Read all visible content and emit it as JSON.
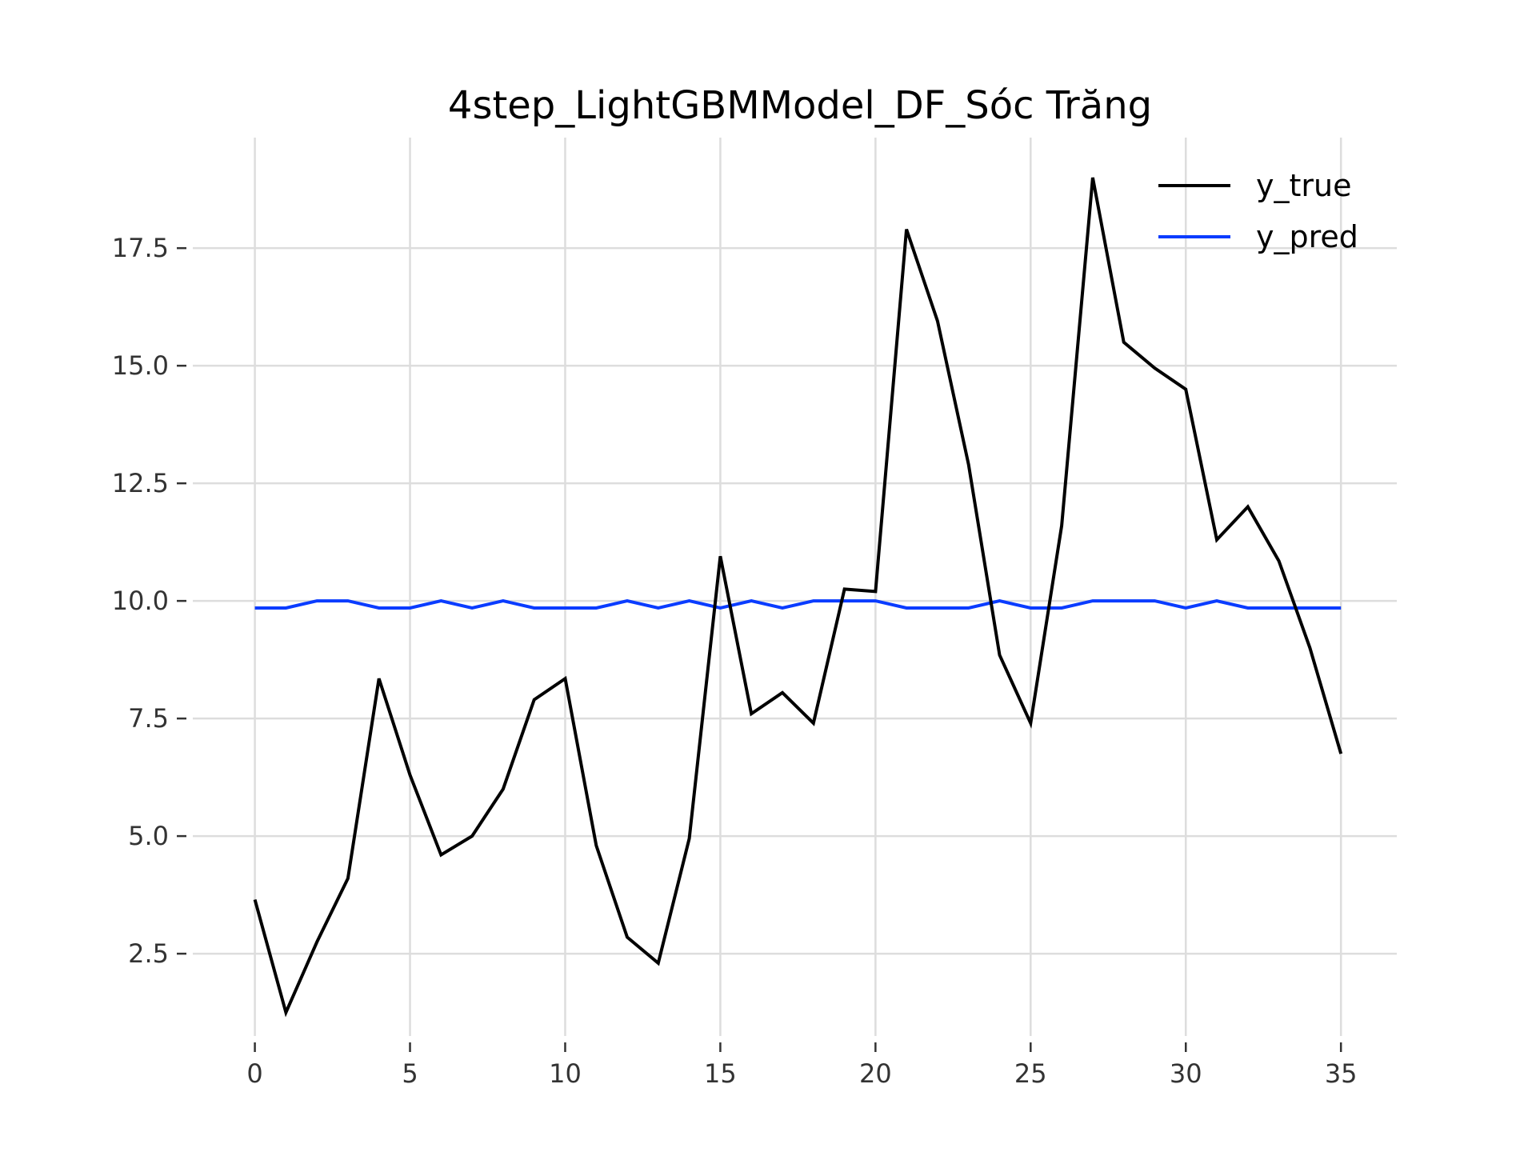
{
  "chart_data": {
    "type": "line",
    "title": "4step_LightGBMModel_DF_Sóc Trăng",
    "xlabel": "",
    "ylabel": "",
    "xlim": [
      -2,
      36.8
    ],
    "ylim": [
      0.75,
      19.85
    ],
    "grid": true,
    "legend_position": "top-right",
    "x_ticks": [
      0,
      5,
      10,
      15,
      20,
      25,
      30,
      35
    ],
    "x_tick_labels": [
      "0",
      "5",
      "10",
      "15",
      "20",
      "25",
      "30",
      "35"
    ],
    "y_ticks": [
      2.5,
      5.0,
      7.5,
      10.0,
      12.5,
      15.0,
      17.5
    ],
    "y_tick_labels": [
      "2.5",
      "5.0",
      "7.5",
      "10.0",
      "12.5",
      "15.0",
      "17.5"
    ],
    "x": [
      0,
      1,
      2,
      3,
      4,
      5,
      6,
      7,
      8,
      9,
      10,
      11,
      12,
      13,
      14,
      15,
      16,
      17,
      18,
      19,
      20,
      21,
      22,
      23,
      24,
      25,
      26,
      27,
      28,
      29,
      30,
      31,
      32,
      33,
      34,
      35
    ],
    "series": [
      {
        "name": "y_true",
        "color": "#000000",
        "values": [
          3.65,
          1.25,
          2.75,
          4.1,
          8.35,
          6.3,
          4.6,
          5.0,
          6.0,
          7.9,
          8.35,
          4.8,
          2.85,
          2.3,
          4.95,
          10.95,
          7.6,
          8.05,
          7.4,
          10.25,
          10.2,
          17.9,
          15.95,
          12.9,
          8.85,
          7.4,
          11.6,
          19.0,
          15.5,
          14.95,
          14.5,
          11.3,
          12.0,
          10.85,
          9.0,
          6.75
        ]
      },
      {
        "name": "y_pred",
        "color": "#0a3cff",
        "values": [
          9.85,
          9.85,
          10.0,
          10.0,
          9.85,
          9.85,
          10.0,
          9.85,
          10.0,
          9.85,
          9.85,
          9.85,
          10.0,
          9.85,
          10.0,
          9.85,
          10.0,
          9.85,
          10.0,
          10.0,
          10.0,
          9.85,
          9.85,
          9.85,
          10.0,
          9.85,
          9.85,
          10.0,
          10.0,
          10.0,
          9.85,
          10.0,
          9.85,
          9.85,
          9.85,
          9.85
        ]
      }
    ]
  }
}
